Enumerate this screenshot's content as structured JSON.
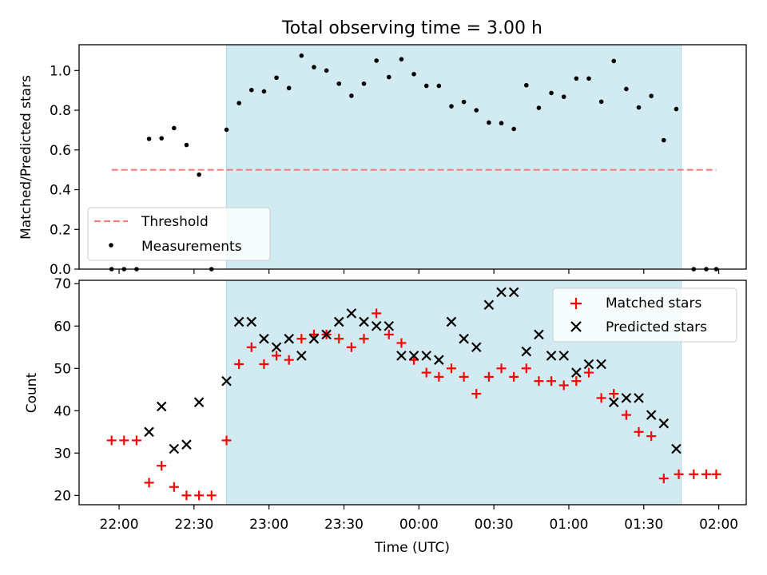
{
  "figure": {
    "title": "Total observing time = 3.00 h",
    "xlabel": "Time (UTC)"
  },
  "chart_data": [
    {
      "type": "scatter",
      "ylabel": "Matched/Predicted stars",
      "ylim": [
        0,
        1.13
      ],
      "yticks": [
        "0.0",
        "0.2",
        "0.4",
        "0.6",
        "0.8",
        "1.0"
      ],
      "ytick_values": [
        0,
        0.2,
        0.4,
        0.6,
        0.8,
        1.0
      ],
      "xlim_minutes": [
        -16,
        251
      ],
      "shaded_span_minutes": [
        43,
        225
      ],
      "shaded_color": "#add8e6",
      "threshold": {
        "name": "Threshold",
        "value": 0.5,
        "x_minutes": [
          -3,
          239
        ],
        "color": "#f08080"
      },
      "legend": {
        "position": "lower-left",
        "entries": [
          "Threshold",
          "Measurements"
        ]
      },
      "series": [
        {
          "name": "Measurements",
          "color": "#000000",
          "x_minutes": [
            -3,
            2,
            7,
            12,
            17,
            22,
            27,
            32,
            37,
            43,
            48,
            53,
            58,
            63,
            68,
            73,
            78,
            83,
            88,
            93,
            98,
            103,
            108,
            113,
            118,
            123,
            128,
            133,
            138,
            143,
            148,
            153,
            158,
            163,
            168,
            173,
            178,
            183,
            188,
            193,
            198,
            203,
            208,
            213,
            218,
            223,
            230,
            235,
            239
          ],
          "y": [
            0.0,
            0.0,
            0.0,
            0.656,
            0.659,
            0.71,
            0.625,
            0.476,
            0.0,
            0.702,
            0.836,
            0.902,
            0.895,
            0.964,
            0.912,
            1.075,
            1.017,
            1.0,
            0.934,
            0.873,
            0.934,
            1.05,
            0.967,
            1.057,
            0.982,
            0.923,
            0.923,
            0.82,
            0.842,
            0.8,
            0.738,
            0.735,
            0.706,
            0.926,
            0.812,
            0.887,
            0.868,
            0.96,
            0.96,
            0.843,
            1.048,
            0.907,
            0.814,
            0.872,
            0.649,
            0.806,
            0.0,
            0.0,
            0.0
          ]
        }
      ]
    },
    {
      "type": "scatter",
      "ylabel": "Count",
      "ylim": [
        17.8,
        70.8
      ],
      "yticks": [
        "20",
        "30",
        "40",
        "50",
        "60",
        "70"
      ],
      "ytick_values": [
        20,
        30,
        40,
        50,
        60,
        70
      ],
      "xlim_minutes": [
        -16,
        251
      ],
      "shaded_span_minutes": [
        43,
        225
      ],
      "shaded_color": "#add8e6",
      "legend": {
        "position": "top-right",
        "entries": [
          "Matched stars",
          "Predicted stars"
        ]
      },
      "series": [
        {
          "name": "Matched stars",
          "marker": "+",
          "color": "#ff0000",
          "x_minutes": [
            -3,
            2,
            7,
            12,
            17,
            22,
            27,
            32,
            37,
            43,
            48,
            53,
            58,
            63,
            68,
            73,
            78,
            83,
            88,
            93,
            98,
            103,
            108,
            113,
            118,
            123,
            128,
            133,
            138,
            143,
            148,
            153,
            158,
            163,
            168,
            173,
            178,
            183,
            188,
            193,
            198,
            203,
            208,
            213,
            218,
            224,
            230,
            235,
            239
          ],
          "y": [
            33,
            33,
            33,
            23,
            27,
            22,
            20,
            20,
            20,
            33,
            51,
            55,
            51,
            53,
            52,
            57,
            58,
            58,
            57,
            55,
            57,
            63,
            58,
            56,
            52,
            49,
            48,
            50,
            48,
            44,
            48,
            50,
            48,
            50,
            47,
            47,
            46,
            47,
            49,
            43,
            44,
            39,
            35,
            34,
            24,
            25,
            25,
            25,
            25
          ]
        },
        {
          "name": "Predicted stars",
          "marker": "x",
          "color": "#000000",
          "x_minutes": [
            12,
            17,
            22,
            27,
            32,
            43,
            48,
            53,
            58,
            63,
            68,
            73,
            78,
            83,
            88,
            93,
            98,
            103,
            108,
            113,
            118,
            123,
            128,
            133,
            138,
            143,
            148,
            153,
            158,
            163,
            168,
            173,
            178,
            183,
            188,
            193,
            198,
            203,
            208,
            213,
            218,
            223
          ],
          "y": [
            35,
            41,
            31,
            32,
            42,
            47,
            61,
            61,
            57,
            55,
            57,
            53,
            57,
            58,
            61,
            63,
            61,
            60,
            60,
            53,
            53,
            53,
            52,
            61,
            57,
            55,
            65,
            68,
            68,
            54,
            58,
            53,
            53,
            49,
            51,
            51,
            42,
            43,
            43,
            39,
            37,
            31
          ]
        }
      ]
    }
  ],
  "x_axis": {
    "ticks": [
      "22:00",
      "22:30",
      "23:00",
      "23:30",
      "00:00",
      "00:30",
      "01:00",
      "01:30",
      "02:00"
    ],
    "tick_minutes": [
      0,
      30,
      60,
      90,
      120,
      150,
      180,
      210,
      240
    ]
  }
}
